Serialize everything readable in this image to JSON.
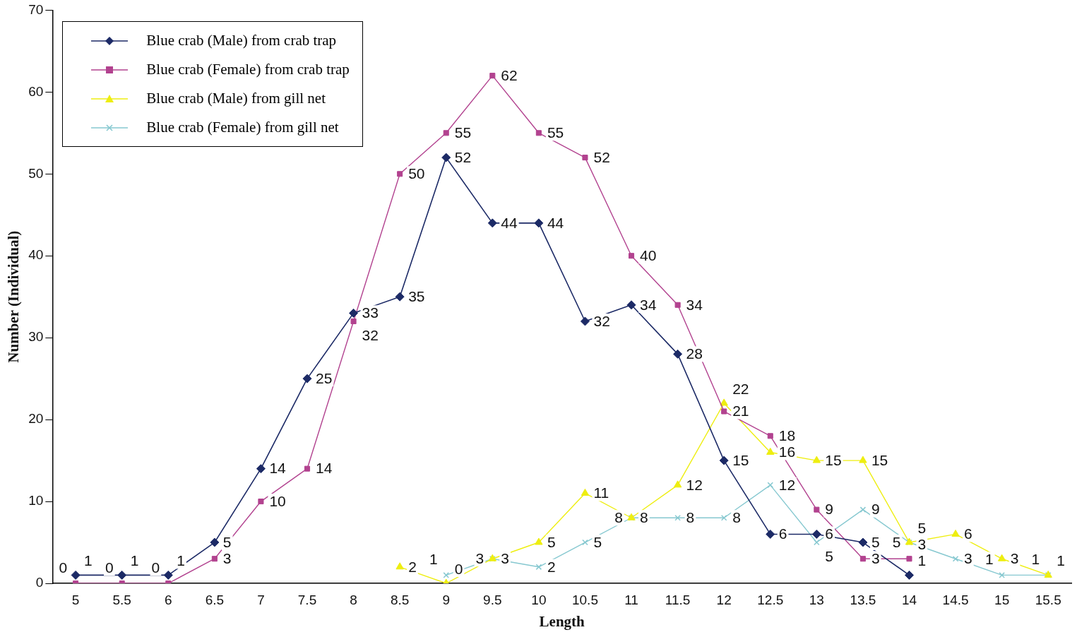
{
  "chart_data": {
    "type": "line",
    "xlabel": "Length",
    "ylabel": "Number (Individual)",
    "categories": [
      "5",
      "5.5",
      "6",
      "6.5",
      "7",
      "7.5",
      "8",
      "8.5",
      "9",
      "9.5",
      "10",
      "10.5",
      "11",
      "11.5",
      "12",
      "12.5",
      "13",
      "13.5",
      "14",
      "14.5",
      "15",
      "15.5"
    ],
    "series": [
      {
        "name": "Blue crab (Male) from crab trap",
        "color": "#1c2a66",
        "marker": "diamond",
        "values": [
          1,
          1,
          1,
          5,
          14,
          25,
          33,
          35,
          52,
          44,
          44,
          32,
          34,
          28,
          15,
          6,
          6,
          5,
          1,
          null,
          null,
          null
        ]
      },
      {
        "name": "Blue crab (Female) from crab trap",
        "color": "#b2428f",
        "marker": "square",
        "values": [
          0,
          0,
          0,
          3,
          10,
          14,
          32,
          50,
          55,
          62,
          55,
          52,
          40,
          34,
          21,
          18,
          9,
          3,
          3,
          null,
          null,
          null
        ]
      },
      {
        "name": "Blue crab (Male) from gill net",
        "color": "#eeee10",
        "marker": "triangle",
        "values": [
          null,
          null,
          null,
          null,
          null,
          null,
          null,
          2,
          0,
          3,
          5,
          11,
          8,
          12,
          22,
          16,
          15,
          15,
          5,
          6,
          3,
          1
        ]
      },
      {
        "name": "Blue crab (Female) from gill net",
        "color": "#86c8d0",
        "marker": "cross",
        "values": [
          null,
          null,
          null,
          null,
          null,
          null,
          null,
          null,
          1,
          3,
          2,
          5,
          8,
          8,
          8,
          12,
          5,
          9,
          5,
          3,
          1,
          1
        ]
      }
    ],
    "ylim": [
      0,
      70
    ],
    "yticks": [
      0,
      10,
      20,
      30,
      40,
      50,
      60,
      70
    ],
    "grid": false,
    "legend": "top left",
    "data_labels": true,
    "line_style": "solid"
  }
}
